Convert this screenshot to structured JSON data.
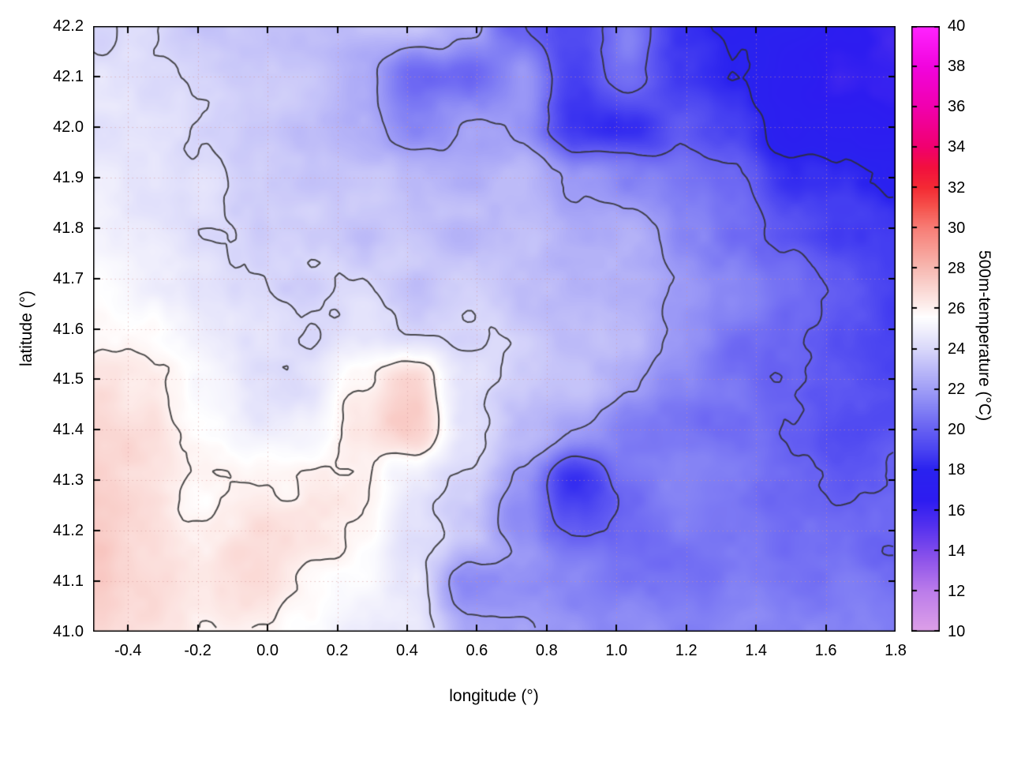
{
  "chart_data": {
    "type": "heatmap",
    "xlabel": "longitude (°)",
    "ylabel": "latitude (°)",
    "colorbar_label": "500m-temperature (°C)",
    "xlim": [
      -0.5,
      1.8
    ],
    "ylim": [
      41.0,
      42.2
    ],
    "clim": [
      10,
      40
    ],
    "grid_dotted": true,
    "legend_position": "colorbar-right",
    "x_ticks": [
      -0.4,
      -0.2,
      0.0,
      0.2,
      0.4,
      0.6,
      0.8,
      1.0,
      1.2,
      1.4,
      1.6,
      1.8
    ],
    "x_tick_labels": [
      "-0.4",
      "-0.2",
      "0.0",
      "0.2",
      "0.4",
      "0.6",
      "0.8",
      "1.0",
      "1.2",
      "1.4",
      "1.6",
      "1.8"
    ],
    "y_ticks": [
      41.0,
      41.1,
      41.2,
      41.3,
      41.4,
      41.5,
      41.6,
      41.7,
      41.8,
      41.9,
      42.0,
      42.1,
      42.2
    ],
    "y_tick_labels": [
      "41.0",
      "41.1",
      "41.2",
      "41.3",
      "41.4",
      "41.5",
      "41.6",
      "41.7",
      "41.8",
      "41.9",
      "42.0",
      "42.1",
      "42.2"
    ],
    "colorbar_ticks": [
      10,
      12,
      14,
      16,
      18,
      20,
      22,
      24,
      26,
      28,
      30,
      32,
      34,
      36,
      38,
      40
    ],
    "colorbar_tick_labels": [
      "10",
      "12",
      "14",
      "16",
      "18",
      "20",
      "22",
      "24",
      "26",
      "28",
      "30",
      "32",
      "34",
      "36",
      "38",
      "40"
    ],
    "contour_levels": [
      18,
      20,
      22,
      24,
      26
    ],
    "contour_color": "#2e2e2e",
    "grid_color": "rgba(214,150,150,0.55)",
    "colormap": [
      [
        10,
        "#dda0e8"
      ],
      [
        12,
        "#bb7cea"
      ],
      [
        13.5,
        "#9055ea"
      ],
      [
        15,
        "#5b35ee"
      ],
      [
        16.5,
        "#2d1cf0"
      ],
      [
        18,
        "#2a22ef"
      ],
      [
        19,
        "#4a44f1"
      ],
      [
        20,
        "#6660f2"
      ],
      [
        21,
        "#8280f4"
      ],
      [
        22,
        "#a09ef6"
      ],
      [
        23,
        "#bcbaf8"
      ],
      [
        24,
        "#d9d8fa"
      ],
      [
        25,
        "#f2f1fc"
      ],
      [
        25.6,
        "#ffffff"
      ],
      [
        26.2,
        "#fdecea"
      ],
      [
        27,
        "#fad6d2"
      ],
      [
        28,
        "#f7b9b2"
      ],
      [
        29,
        "#f79b93"
      ],
      [
        30,
        "#f77d76"
      ],
      [
        31,
        "#f6544e"
      ],
      [
        32,
        "#f42a34"
      ],
      [
        33,
        "#f2103e"
      ],
      [
        34,
        "#f1006e"
      ],
      [
        36,
        "#f100ae"
      ],
      [
        38,
        "#f104dd"
      ],
      [
        40,
        "#ff24ff"
      ]
    ],
    "field": {
      "units": "°C",
      "x": [
        -0.5,
        -0.35,
        -0.19,
        -0.04,
        0.11,
        0.27,
        0.42,
        0.57,
        0.73,
        0.88,
        1.03,
        1.19,
        1.34,
        1.49,
        1.65,
        1.8
      ],
      "y": [
        42.2,
        42.1,
        42.0,
        41.9,
        41.8,
        41.7,
        41.6,
        41.5,
        41.4,
        41.3,
        41.2,
        41.1,
        41.0
      ],
      "values": [
        [
          24.3,
          24.0,
          23.8,
          23.5,
          23.5,
          23.4,
          23.0,
          22.5,
          20.0,
          19.0,
          21.0,
          18.5,
          17.5,
          17.3,
          16.4,
          15.8
        ],
        [
          24.2,
          24.0,
          23.6,
          23.4,
          23.2,
          22.5,
          20.5,
          20.5,
          21.5,
          19.0,
          20.5,
          19.0,
          18.0,
          17.0,
          16.5,
          16.0
        ],
        [
          24.4,
          24.2,
          23.8,
          23.5,
          23.2,
          22.8,
          21.0,
          22.0,
          21.5,
          18.5,
          18.5,
          20.0,
          19.0,
          17.5,
          17.0,
          16.5
        ],
        [
          24.8,
          24.5,
          24.0,
          23.8,
          23.5,
          23.2,
          22.8,
          22.5,
          22.8,
          22.0,
          21.5,
          20.5,
          20.0,
          18.5,
          18.0,
          17.5
        ],
        [
          25.2,
          24.8,
          24.3,
          24.0,
          23.8,
          23.5,
          23.2,
          23.2,
          23.0,
          22.8,
          22.5,
          21.5,
          20.5,
          19.5,
          19.0,
          18.5
        ],
        [
          25.8,
          25.3,
          24.8,
          24.3,
          24.0,
          23.8,
          23.5,
          23.5,
          23.3,
          23.0,
          22.8,
          22.0,
          21.0,
          20.0,
          19.5,
          19.0
        ],
        [
          26.2,
          25.6,
          25.0,
          24.6,
          24.3,
          24.0,
          24.0,
          23.8,
          23.5,
          23.2,
          22.8,
          22.0,
          21.0,
          20.0,
          19.5,
          19.0
        ],
        [
          26.5,
          26.0,
          25.3,
          24.8,
          24.5,
          25.5,
          26.8,
          24.5,
          23.5,
          23.0,
          22.5,
          21.5,
          20.5,
          19.8,
          19.5,
          19.2
        ],
        [
          26.8,
          26.3,
          25.6,
          25.0,
          25.2,
          26.5,
          27.2,
          24.2,
          23.0,
          22.0,
          21.0,
          20.5,
          20.2,
          19.8,
          19.5,
          19.5
        ],
        [
          27.0,
          26.5,
          26.0,
          25.8,
          26.0,
          26.2,
          25.0,
          23.8,
          22.0,
          18.5,
          20.5,
          21.0,
          20.8,
          20.2,
          20.0,
          19.8
        ],
        [
          27.4,
          26.8,
          26.3,
          26.5,
          26.8,
          26.0,
          24.5,
          23.5,
          21.5,
          20.0,
          20.5,
          21.0,
          20.8,
          20.5,
          20.3,
          20.2
        ],
        [
          27.0,
          26.8,
          26.5,
          26.5,
          26.2,
          25.5,
          24.8,
          21.0,
          21.5,
          21.0,
          21.0,
          21.0,
          21.0,
          20.8,
          20.8,
          20.6
        ],
        [
          26.8,
          26.5,
          26.3,
          26.0,
          25.8,
          25.2,
          24.8,
          22.5,
          22.0,
          21.8,
          21.5,
          21.3,
          21.2,
          21.0,
          21.0,
          21.0
        ]
      ]
    }
  }
}
